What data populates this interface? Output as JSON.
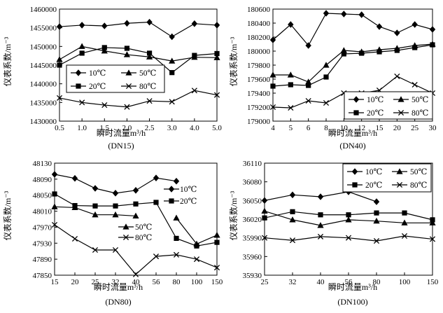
{
  "chart_data": [
    {
      "id": "dn15",
      "type": "line",
      "caption": "(DN15)",
      "xlabel": "瞬时流量m³/h",
      "ylabel": "仪表系数/m⁻³",
      "categories": [
        "0.5",
        "1.0",
        "1.5",
        "2.0",
        "2.5",
        "3.0",
        "4.0",
        "5.0"
      ],
      "yticks": [
        "1430000",
        "1435000",
        "1440000",
        "1445000",
        "1450000",
        "1455000",
        "1460000"
      ],
      "ylim": [
        1430000,
        1460000
      ],
      "legend": "center-left, 2 columns",
      "series": [
        {
          "name": "10℃",
          "marker": "diamond",
          "values": [
            1455300,
            1455700,
            1455500,
            1456200,
            1456500,
            1452600,
            1456100,
            1455700
          ]
        },
        {
          "name": "50℃",
          "marker": "triangle",
          "values": [
            1446500,
            1450000,
            1448800,
            1447800,
            1447200,
            1446100,
            1447100,
            1447000
          ]
        },
        {
          "name": "20℃",
          "marker": "square",
          "values": [
            1445000,
            1448200,
            1449700,
            1449500,
            1448200,
            1443000,
            1447600,
            1448100
          ]
        },
        {
          "name": "80℃",
          "marker": "x",
          "values": [
            1436200,
            1435000,
            1434300,
            1433800,
            1435400,
            1435200,
            1438200,
            1437000
          ]
        }
      ]
    },
    {
      "id": "dn40",
      "type": "line",
      "caption": "(DN40)",
      "xlabel": "瞬时流量m³/h",
      "ylabel": "仪表系数/m⁻³",
      "categories": [
        "4",
        "5",
        "6",
        "8",
        "10",
        "12",
        "15",
        "20",
        "25",
        "30"
      ],
      "yticks": [
        "179000",
        "179200",
        "179400",
        "179600",
        "179800",
        "180000",
        "180200",
        "180400",
        "180600"
      ],
      "ylim": [
        179000,
        180600
      ],
      "legend": "bottom-right, 2 columns",
      "series": [
        {
          "name": "10℃",
          "marker": "diamond",
          "values": [
            180160,
            180380,
            180080,
            180540,
            180530,
            180520,
            180350,
            180260,
            180380,
            180310
          ]
        },
        {
          "name": "50℃",
          "marker": "triangle",
          "values": [
            179660,
            179660,
            179560,
            179800,
            180010,
            179990,
            180020,
            180040,
            180080,
            180100
          ]
        },
        {
          "name": "20℃",
          "marker": "square",
          "values": [
            179500,
            179520,
            179510,
            179630,
            179960,
            179970,
            179990,
            180010,
            180050,
            180090
          ]
        },
        {
          "name": "80℃",
          "marker": "x",
          "values": [
            179200,
            179190,
            179290,
            179260,
            179400,
            179400,
            179440,
            179640,
            179520,
            179400
          ]
        }
      ]
    },
    {
      "id": "dn80",
      "type": "line",
      "caption": "(DN80)",
      "xlabel": "瞬时流量m³/h",
      "ylabel": "仪表系数/m⁻³",
      "categories": [
        "15",
        "20",
        "25",
        "32",
        "40",
        "56",
        "80",
        "100",
        "150"
      ],
      "yticks": [
        "47850",
        "47890",
        "47930",
        "47970",
        "48010",
        "48050",
        "48090",
        "48130"
      ],
      "ylim": [
        47850,
        48130
      ],
      "legend": "right (inline labels)",
      "series": [
        {
          "name": "10℃",
          "marker": "diamond",
          "values": [
            48102,
            48092,
            48067,
            48055,
            48062,
            48093,
            48085,
            null,
            null
          ]
        },
        {
          "name": "20℃",
          "marker": "square",
          "values": [
            48053,
            48024,
            48023,
            48023,
            48028,
            48032,
            47942,
            47923,
            47932
          ]
        },
        {
          "name": "50℃",
          "marker": "triangle",
          "values": [
            48021,
            48019,
            48001,
            48001,
            47998,
            null,
            47993,
            47928,
            47950
          ]
        },
        {
          "name": "80℃",
          "marker": "x",
          "values": [
            47976,
            47941,
            47913,
            47913,
            47852,
            47897,
            47901,
            47890,
            47869
          ]
        }
      ]
    },
    {
      "id": "dn100",
      "type": "line",
      "caption": "(DN100)",
      "xlabel": "瞬时流量m³/h",
      "ylabel": "仪表系数/m⁻³",
      "categories": [
        "25",
        "32",
        "40",
        "56",
        "80",
        "100",
        "150"
      ],
      "yticks": [
        "35930",
        "35960",
        "35990",
        "36020",
        "36050",
        "36080",
        "36110"
      ],
      "ylim": [
        35930,
        36110
      ],
      "legend": "top-right, 2 columns",
      "series": [
        {
          "name": "10℃",
          "marker": "diamond",
          "values": [
            36050,
            36059,
            36056,
            36064,
            36048,
            null,
            null
          ]
        },
        {
          "name": "50℃",
          "marker": "triangle",
          "values": [
            36033,
            36019,
            36010,
            36019,
            36017,
            36014,
            36014
          ]
        },
        {
          "name": "20℃",
          "marker": "square",
          "values": [
            36022,
            36032,
            36027,
            36027,
            36030,
            36030,
            36019
          ]
        },
        {
          "name": "80℃",
          "marker": "x",
          "values": [
            35990,
            35986,
            35992,
            35990,
            35985,
            35993,
            35988
          ]
        }
      ]
    }
  ]
}
